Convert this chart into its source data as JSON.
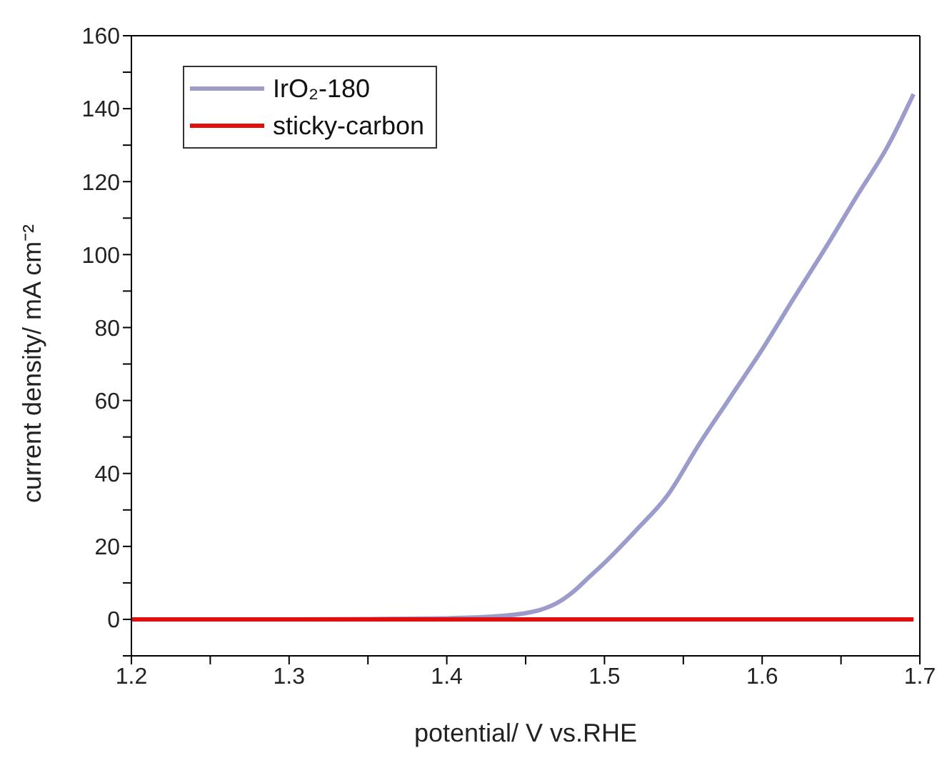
{
  "chart_data": {
    "type": "line",
    "xlabel": "potential/ V vs.RHE",
    "ylabel": "current density/ mA cm⁻²",
    "xlim": [
      1.2,
      1.7
    ],
    "xticks": [
      1.2,
      {
        "value": 1.25,
        "label": null
      },
      1.3,
      {
        "value": 1.35,
        "label": null
      },
      1.4,
      {
        "value": 1.45,
        "label": null
      },
      1.5,
      {
        "value": 1.55,
        "label": null
      },
      1.6,
      {
        "value": 1.65,
        "label": null
      },
      1.7
    ],
    "ylim": [
      -10,
      160
    ],
    "yticks": [
      {
        "value": -10,
        "label": null
      },
      0,
      {
        "value": 10,
        "label": null
      },
      20,
      {
        "value": 30,
        "label": null
      },
      40,
      {
        "value": 50,
        "label": null
      },
      60,
      {
        "value": 70,
        "label": null
      },
      80,
      {
        "value": 90,
        "label": null
      },
      100,
      {
        "value": 110,
        "label": null
      },
      120,
      {
        "value": 130,
        "label": null
      },
      140,
      {
        "value": 150,
        "label": null
      },
      160
    ],
    "grid": false,
    "legend": "top left",
    "marker": "none",
    "line_style": "solid",
    "series": [
      {
        "name": "IrO₂-180",
        "color": "#9c9ccc",
        "x": [
          1.2,
          1.3,
          1.35,
          1.4,
          1.43,
          1.45,
          1.46,
          1.47,
          1.48,
          1.49,
          1.5,
          1.52,
          1.54,
          1.56,
          1.58,
          1.6,
          1.62,
          1.64,
          1.66,
          1.68,
          1.696
        ],
        "values": [
          0,
          0,
          0.1,
          0.3,
          0.8,
          1.7,
          2.7,
          4.5,
          7.5,
          11.5,
          15.5,
          24.4,
          34,
          48,
          61,
          74,
          88,
          101.7,
          116,
          130,
          144
        ]
      },
      {
        "name": "sticky-carbon",
        "color": "#e01010",
        "x": [
          1.2,
          1.4,
          1.6,
          1.696
        ],
        "values": [
          0,
          0,
          0,
          0
        ]
      }
    ]
  }
}
